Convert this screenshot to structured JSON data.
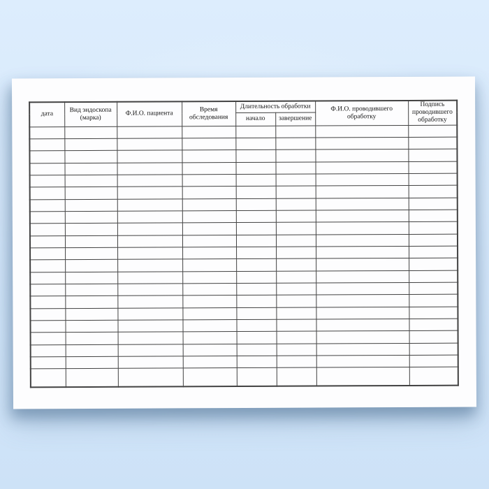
{
  "document": {
    "kind": "scanned-blank-log-form",
    "language": "ru"
  },
  "colors": {
    "bg_top": "#ddedfd",
    "bg_bottom": "#cde2f7",
    "paper": "#fdfdfe",
    "table_border": "#424242",
    "text": "#141414"
  },
  "table": {
    "headers": {
      "date": "дата",
      "endoscope_type": "Вид эндоскопа (марка)",
      "patient_name": "Ф.И.О. пациента",
      "exam_time": "Время обследования",
      "duration_group": "Длительность обработки",
      "duration_start": "начало",
      "duration_end": "завершение",
      "processor_name": "Ф.И.О. проводившего обработку",
      "processor_signature": "Подпись проводившего обработку"
    },
    "column_count": 8,
    "row_count": 21,
    "empty_cell_value": "",
    "rows": []
  }
}
